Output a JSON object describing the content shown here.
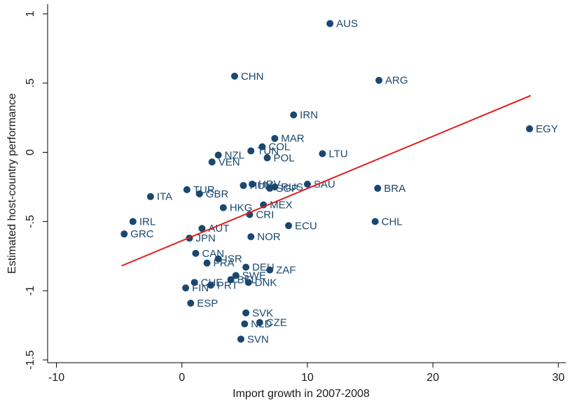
{
  "chart_data": {
    "type": "scatter",
    "x_label": "Import growth in 2007-2008",
    "y_label": "Estimated host-country performance",
    "labels": [
      "AUS",
      "CHN",
      "ARG",
      "IRN",
      "EGY",
      "MAR",
      "COL",
      "NZL",
      "TUN",
      "POL",
      "LTU",
      "VEN",
      "HRV",
      "HUN",
      "SGP",
      "RUS",
      "SAU",
      "TUR",
      "GBR",
      "ITA",
      "BRA",
      "HKG",
      "MEX",
      "CRI",
      "IRL",
      "CHL",
      "ECU",
      "AUT",
      "GRC",
      "JPN",
      "NOR",
      "CAN",
      "ISR",
      "FRA",
      "DEU",
      "ZAF",
      "SWE",
      "BEL",
      "DNK",
      "PRT",
      "CHE",
      "FIN",
      "ESP",
      "SVK",
      "NLD",
      "CZE",
      "SVN"
    ],
    "x": [
      11.8,
      4.2,
      15.7,
      8.9,
      27.7,
      7.4,
      6.4,
      2.9,
      5.5,
      6.8,
      11.2,
      2.4,
      5.6,
      4.9,
      7.0,
      7.4,
      10.0,
      0.4,
      1.4,
      -2.5,
      15.6,
      3.3,
      6.5,
      5.4,
      -3.9,
      15.4,
      8.5,
      1.6,
      -4.6,
      0.6,
      5.5,
      1.1,
      2.9,
      2.0,
      5.1,
      7.0,
      4.3,
      3.9,
      5.3,
      2.3,
      1.0,
      0.3,
      0.7,
      5.1,
      5.0,
      6.2,
      4.7
    ],
    "values": [
      0.93,
      0.55,
      0.52,
      0.27,
      0.17,
      0.1,
      0.04,
      -0.02,
      0.01,
      -0.04,
      -0.01,
      -0.07,
      -0.23,
      -0.24,
      -0.26,
      -0.25,
      -0.23,
      -0.27,
      -0.3,
      -0.32,
      -0.26,
      -0.4,
      -0.38,
      -0.45,
      -0.5,
      -0.5,
      -0.53,
      -0.55,
      -0.59,
      -0.62,
      -0.61,
      -0.73,
      -0.77,
      -0.8,
      -0.83,
      -0.85,
      -0.89,
      -0.92,
      -0.94,
      -0.96,
      -0.94,
      -0.98,
      -1.09,
      -1.16,
      -1.24,
      -1.23,
      -1.35
    ],
    "color": "#1a476f",
    "fit_line": {
      "x": [
        -4.8,
        27.8
      ],
      "values": [
        -0.82,
        0.41
      ],
      "color": "#e41a1c"
    },
    "xlim": [
      -10.7,
      30.6
    ],
    "ylim": [
      -1.52,
      1.07
    ],
    "xticks": [
      -10,
      0,
      10,
      20,
      30
    ],
    "yticks": [
      1,
      {
        "value": 0.5,
        "label": ".5"
      },
      0,
      {
        "value": -0.5,
        "label": "-.5"
      },
      -1,
      {
        "value": -1.5,
        "label": "-1.5"
      }
    ]
  }
}
